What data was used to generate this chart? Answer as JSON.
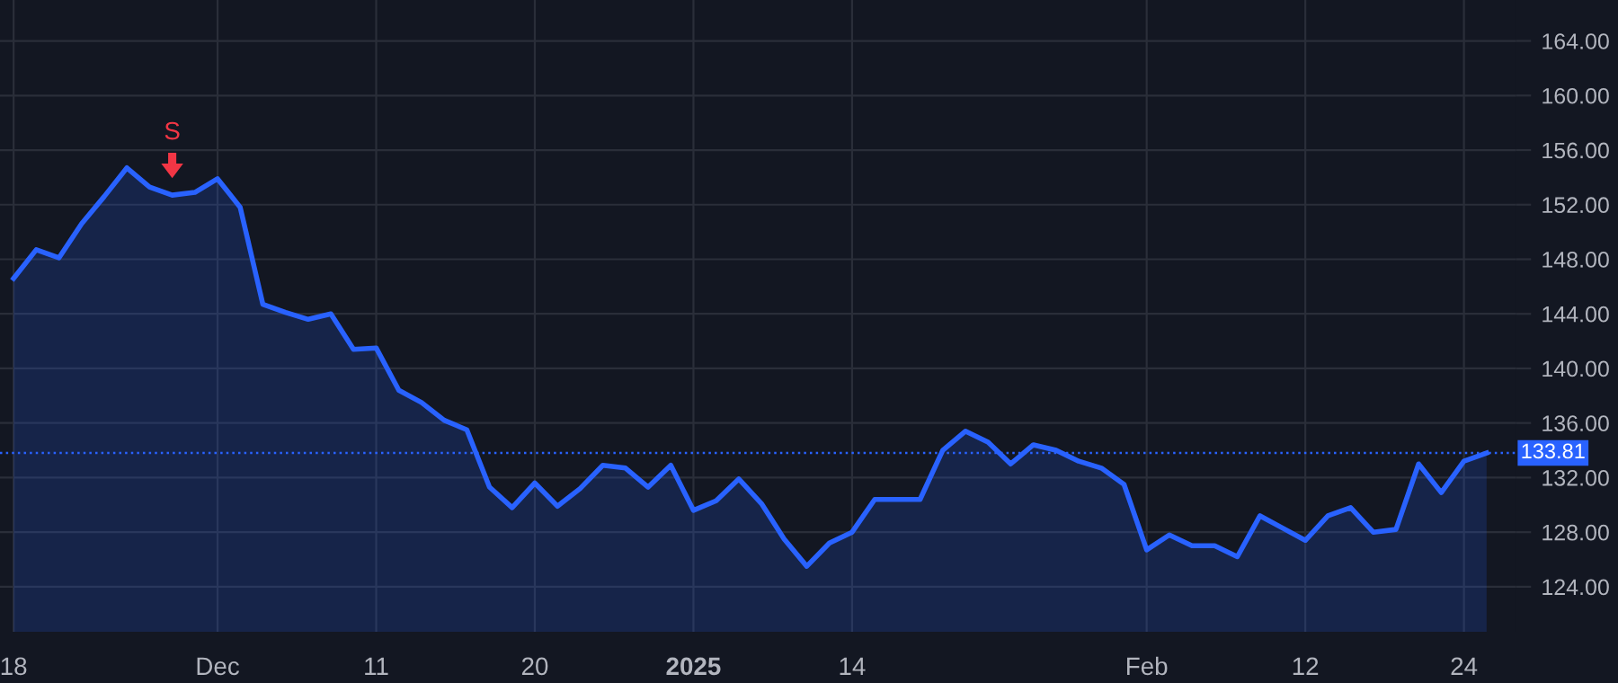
{
  "chart_data": {
    "type": "area",
    "categories": [
      "18",
      null,
      null,
      null,
      null,
      null,
      null,
      null,
      null,
      "Dec",
      null,
      null,
      null,
      null,
      null,
      null,
      "11",
      null,
      null,
      null,
      null,
      null,
      null,
      "20",
      null,
      null,
      null,
      null,
      null,
      null,
      "2025",
      null,
      null,
      null,
      null,
      null,
      null,
      "14",
      null,
      null,
      null,
      null,
      null,
      null,
      null,
      null,
      null,
      null,
      null,
      null,
      "Feb",
      null,
      null,
      null,
      null,
      null,
      null,
      "12",
      null,
      null,
      null,
      null,
      null,
      null,
      "24",
      null
    ],
    "series": [
      {
        "color": "#2962ff",
        "values": [
          146.6,
          148.7,
          148.1,
          150.6,
          152.6,
          154.7,
          153.3,
          152.7,
          152.9,
          153.9,
          151.8,
          144.7,
          144.1,
          143.6,
          144.0,
          141.4,
          141.5,
          138.4,
          137.5,
          136.2,
          135.5,
          131.3,
          129.8,
          131.6,
          129.9,
          131.2,
          132.9,
          132.7,
          131.3,
          132.9,
          129.6,
          130.3,
          131.9,
          130.1,
          127.5,
          125.5,
          127.2,
          128.0,
          130.4,
          130.4,
          130.4,
          134.0,
          135.4,
          134.6,
          133.0,
          134.4,
          134.0,
          133.2,
          132.7,
          131.5,
          126.7,
          127.8,
          127.0,
          127.0,
          126.2,
          129.2,
          128.3,
          127.4,
          129.2,
          129.8,
          128.0,
          128.2,
          133.0,
          130.9,
          133.2,
          133.8
        ]
      }
    ],
    "ylim": [
      120.7,
      167.0
    ],
    "yticks": [
      {
        "value": 124,
        "label": "124.00"
      },
      {
        "value": 128,
        "label": "128.00"
      },
      {
        "value": 132,
        "label": "132.00"
      },
      {
        "value": 136,
        "label": "136.00"
      },
      {
        "value": 140,
        "label": "140.00"
      },
      {
        "value": 144,
        "label": "144.00"
      },
      {
        "value": 148,
        "label": "148.00"
      },
      {
        "value": 152,
        "label": "152.00"
      },
      {
        "value": 156,
        "label": "156.00"
      },
      {
        "value": 160,
        "label": "160.00"
      },
      {
        "value": 164,
        "label": "164.00"
      }
    ],
    "grid": true,
    "ref_lines": [
      {
        "axis": "y",
        "value": 133.81,
        "label": "133.81",
        "color": "#2962ff",
        "line_style": "dotted"
      }
    ],
    "annotations": [
      {
        "text": "S",
        "y": 152.7
      }
    ]
  }
}
